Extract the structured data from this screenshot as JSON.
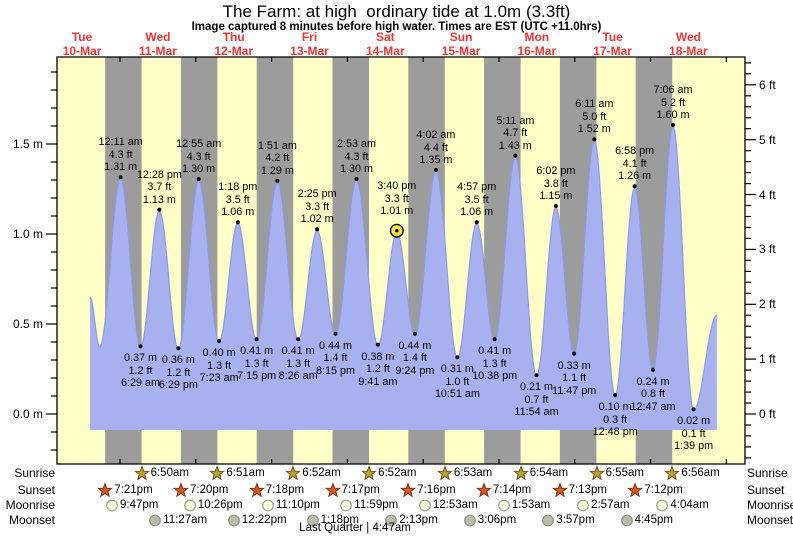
{
  "chart_data": {
    "type": "area",
    "title": "The Farm: at high  ordinary tide at 1.0m (3.3ft)",
    "subtitle": "Image captured 8 minutes before high water. Times are EST (UTC +11.0hrs)",
    "x_days": [
      {
        "weekday": "Tue",
        "date": "10-Mar"
      },
      {
        "weekday": "Wed",
        "date": "11-Mar"
      },
      {
        "weekday": "Thu",
        "date": "12-Mar"
      },
      {
        "weekday": "Fri",
        "date": "13-Mar"
      },
      {
        "weekday": "Sat",
        "date": "14-Mar"
      },
      {
        "weekday": "Sun",
        "date": "15-Mar"
      },
      {
        "weekday": "Mon",
        "date": "16-Mar"
      },
      {
        "weekday": "Tue",
        "date": "17-Mar"
      },
      {
        "weekday": "Wed",
        "date": "18-Mar"
      }
    ],
    "y_left_ticks": [
      {
        "v": 0.0,
        "label": "0.0 m"
      },
      {
        "v": 0.5,
        "label": "0.5 m"
      },
      {
        "v": 1.0,
        "label": "1.0 m"
      },
      {
        "v": 1.5,
        "label": "1.5 m"
      }
    ],
    "y_right_ticks": [
      {
        "v": 0,
        "label": "0 ft"
      },
      {
        "v": 1,
        "label": "1 ft"
      },
      {
        "v": 2,
        "label": "2 ft"
      },
      {
        "v": 3,
        "label": "3 ft"
      },
      {
        "v": 4,
        "label": "4 ft"
      },
      {
        "v": 5,
        "label": "5 ft"
      },
      {
        "v": 6,
        "label": "6 ft"
      }
    ],
    "ylim_m": [
      -0.28,
      1.98
    ],
    "tide_events": [
      {
        "type": "high",
        "day": 1,
        "time": "12:11 am",
        "height_m": "1.31",
        "height_ft": "4.3"
      },
      {
        "type": "low",
        "day": 1,
        "time": "6:29 am",
        "height_m": "0.37",
        "height_ft": "1.2"
      },
      {
        "type": "high",
        "day": 1,
        "time": "12:28 pm",
        "height_m": "1.13",
        "height_ft": "3.7"
      },
      {
        "type": "low",
        "day": 1,
        "time": "6:29 pm",
        "height_m": "0.36",
        "height_ft": "1.2"
      },
      {
        "type": "high",
        "day": 2,
        "time": "12:55 am",
        "height_m": "1.30",
        "height_ft": "4.3"
      },
      {
        "type": "low",
        "day": 2,
        "time": "7:23 am",
        "height_m": "0.40",
        "height_ft": "1.3"
      },
      {
        "type": "high",
        "day": 2,
        "time": "1:18 pm",
        "height_m": "1.06",
        "height_ft": "3.5"
      },
      {
        "type": "low",
        "day": 2,
        "time": "7:15 pm",
        "height_m": "0.41",
        "height_ft": "1.3"
      },
      {
        "type": "high",
        "day": 3,
        "time": "1:51 am",
        "height_m": "1.29",
        "height_ft": "4.2"
      },
      {
        "type": "low",
        "day": 3,
        "time": "8:26 am",
        "height_m": "0.41",
        "height_ft": "1.3"
      },
      {
        "type": "high",
        "day": 3,
        "time": "2:25 pm",
        "height_m": "1.02",
        "height_ft": "3.3"
      },
      {
        "type": "low",
        "day": 3,
        "time": "8:15 pm",
        "height_m": "0.44",
        "height_ft": "1.4"
      },
      {
        "type": "high",
        "day": 4,
        "time": "2:53 am",
        "height_m": "1.30",
        "height_ft": "4.3"
      },
      {
        "type": "low",
        "day": 4,
        "time": "9:41 am",
        "height_m": "0.38",
        "height_ft": "1.2"
      },
      {
        "type": "high",
        "day": 4,
        "time": "3:40 pm",
        "height_m": "1.01",
        "height_ft": "3.3",
        "current": true
      },
      {
        "type": "low",
        "day": 4,
        "time": "9:24 pm",
        "height_m": "0.44",
        "height_ft": "1.4"
      },
      {
        "type": "high",
        "day": 5,
        "time": "4:02 am",
        "height_m": "1.35",
        "height_ft": "4.4"
      },
      {
        "type": "low",
        "day": 5,
        "time": "10:51 am",
        "height_m": "0.31",
        "height_ft": "1.0"
      },
      {
        "type": "high",
        "day": 5,
        "time": "4:57 pm",
        "height_m": "1.06",
        "height_ft": "3.5"
      },
      {
        "type": "low",
        "day": 5,
        "time": "10:38 pm",
        "height_m": "0.41",
        "height_ft": "1.3"
      },
      {
        "type": "high",
        "day": 6,
        "time": "5:11 am",
        "height_m": "1.43",
        "height_ft": "4.7"
      },
      {
        "type": "low",
        "day": 6,
        "time": "11:54 am",
        "height_m": "0.21",
        "height_ft": "0.7"
      },
      {
        "type": "high",
        "day": 6,
        "time": "6:02 pm",
        "height_m": "1.15",
        "height_ft": "3.8"
      },
      {
        "type": "low",
        "day": 6,
        "time": "11:47 pm",
        "height_m": "0.33",
        "height_ft": "1.1"
      },
      {
        "type": "high",
        "day": 7,
        "time": "6:11 am",
        "height_m": "1.52",
        "height_ft": "5.0"
      },
      {
        "type": "low",
        "day": 7,
        "time": "12:48 pm",
        "height_m": "0.10",
        "height_ft": "0.3"
      },
      {
        "type": "high",
        "day": 7,
        "time": "6:58 pm",
        "height_m": "1.26",
        "height_ft": "4.1"
      },
      {
        "type": "low",
        "day": 8,
        "time": "12:47 am",
        "height_m": "0.24",
        "height_ft": "0.8"
      },
      {
        "type": "high",
        "day": 8,
        "time": "7:06 am",
        "height_m": "1.60",
        "height_ft": "5.2"
      },
      {
        "type": "low",
        "day": 8,
        "time": "1:39 pm",
        "height_m": "0.02",
        "height_ft": "0.1"
      }
    ],
    "unlabeled_curve_points": {
      "start": {
        "t_hours": 14.5,
        "h_m": 0.65
      },
      "first_low": {
        "t_hours": 17.6,
        "h_m": 0.37
      },
      "end": {
        "t_hours": 213.0,
        "h_m": 0.55
      }
    }
  },
  "astronomy": {
    "rows": [
      {
        "name": "sunrise",
        "label": "Sunrise",
        "icon": "sunrise-star",
        "events": [
          {
            "day": 1,
            "time": "6:50am"
          },
          {
            "day": 2,
            "time": "6:51am"
          },
          {
            "day": 3,
            "time": "6:52am"
          },
          {
            "day": 4,
            "time": "6:52am"
          },
          {
            "day": 5,
            "time": "6:53am"
          },
          {
            "day": 6,
            "time": "6:54am"
          },
          {
            "day": 7,
            "time": "6:55am"
          },
          {
            "day": 8,
            "time": "6:56am"
          }
        ]
      },
      {
        "name": "sunset",
        "label": "Sunset",
        "icon": "sunset-star",
        "events": [
          {
            "day": 0,
            "time": "7:21pm"
          },
          {
            "day": 1,
            "time": "7:20pm"
          },
          {
            "day": 2,
            "time": "7:18pm"
          },
          {
            "day": 3,
            "time": "7:17pm"
          },
          {
            "day": 4,
            "time": "7:16pm"
          },
          {
            "day": 5,
            "time": "7:14pm"
          },
          {
            "day": 6,
            "time": "7:13pm"
          },
          {
            "day": 7,
            "time": "7:12pm"
          }
        ]
      },
      {
        "name": "moonrise",
        "label": "Moonrise",
        "icon": "moonrise-circle",
        "events": [
          {
            "day": 0,
            "time": "9:47pm"
          },
          {
            "day": 1,
            "time": "10:26pm"
          },
          {
            "day": 2,
            "time": "11:10pm"
          },
          {
            "day": 3,
            "time": "11:59pm"
          },
          {
            "day": 5,
            "time": "12:53am"
          },
          {
            "day": 6,
            "time": "1:53am"
          },
          {
            "day": 7,
            "time": "2:57am"
          },
          {
            "day": 8,
            "time": "4:04am"
          }
        ]
      },
      {
        "name": "moonset",
        "label": "Moonset",
        "icon": "moonset-circle",
        "events": [
          {
            "day": 1,
            "time": "11:27am"
          },
          {
            "day": 2,
            "time": "12:22pm"
          },
          {
            "day": 3,
            "time": "1:18pm"
          },
          {
            "day": 4,
            "time": "2:13pm"
          },
          {
            "day": 5,
            "time": "3:06pm"
          },
          {
            "day": 6,
            "time": "3:57pm"
          },
          {
            "day": 7,
            "time": "4:45pm"
          }
        ]
      }
    ],
    "moon_phase": "Last Quarter | 4:47am"
  },
  "colors": {
    "day_band": "#ffffc8",
    "night_band": "#9c9c9c",
    "tide_fill": "#a7b1ef",
    "tide_stroke": "#8c98e6",
    "date_text": "#f23333",
    "current_marker": "#ffe838",
    "sunrise_star": "#b3a72f",
    "sunrise_star_stroke": "#7d4a1e",
    "sunset_star": "#d25a1f",
    "sunset_star_stroke": "#8a2d10",
    "moonrise_fill": "#ffffdc",
    "moonrise_stroke": "#9a9a9a",
    "moonset_fill": "#bcbcab",
    "moonset_stroke": "#8f8f85"
  }
}
